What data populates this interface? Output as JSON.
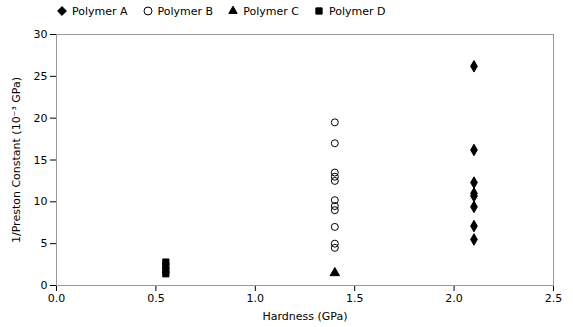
{
  "chart_data": {
    "type": "scatter",
    "xlabel": "Hardness (GPa)",
    "ylabel": "1/Preston Constant (10⁻³ GPa)",
    "xlim": [
      0,
      2.5
    ],
    "ylim": [
      0,
      30
    ],
    "xticks": [
      {
        "value": 0,
        "label": "0.0"
      },
      0.5,
      {
        "value": 1,
        "label": "1.0"
      },
      1.5,
      {
        "value": 2,
        "label": "2.0"
      },
      2.5
    ],
    "yticks": [
      0,
      5,
      10,
      15,
      20,
      25,
      30
    ],
    "legend": "upper left",
    "series": [
      {
        "name": "Polymer A",
        "color": "black",
        "marker": "diamond",
        "x": [
          2.1,
          2.1,
          2.1,
          2.1,
          2.1,
          2.1,
          2.1,
          2.1
        ],
        "values": [
          26.2,
          16.2,
          12.3,
          11.0,
          10.7,
          9.4,
          7.1,
          5.5
        ]
      },
      {
        "name": "Polymer B",
        "color": "black",
        "marker": "circle-open",
        "x": [
          1.4,
          1.4,
          1.4,
          1.4,
          1.4,
          1.4,
          1.4,
          1.4,
          1.4,
          1.4,
          1.4
        ],
        "values": [
          19.5,
          17.0,
          13.5,
          13.0,
          12.5,
          10.2,
          9.5,
          9.0,
          7.0,
          5.0,
          4.5
        ]
      },
      {
        "name": "Polymer C",
        "color": "black",
        "marker": "triangle",
        "x": [
          1.4
        ],
        "values": [
          1.5
        ]
      },
      {
        "name": "Polymer D",
        "color": "black",
        "marker": "square",
        "x": [
          0.55,
          0.55,
          0.55,
          0.55
        ],
        "values": [
          2.8,
          2.3,
          1.8,
          1.4
        ]
      }
    ]
  }
}
